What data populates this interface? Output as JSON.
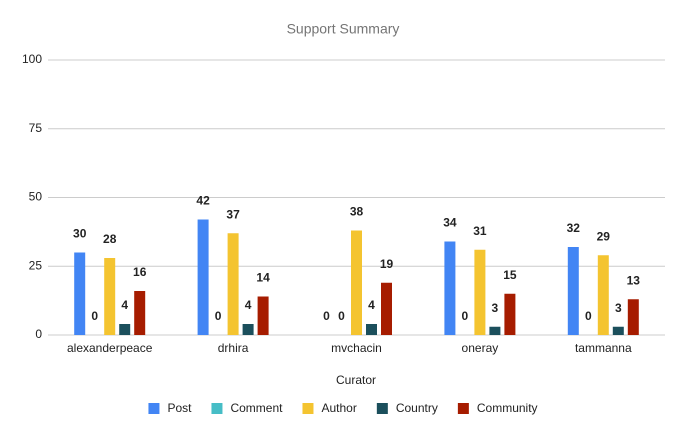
{
  "chart_data": {
    "type": "bar",
    "title": "Support Summary",
    "x_label": "Curator",
    "categories": [
      "alexanderpeace",
      "drhira",
      "mvchacin",
      "oneray",
      "tammanna"
    ],
    "series": [
      {
        "name": "Post",
        "color": "#4285f4",
        "values": [
          30,
          42,
          0,
          34,
          32
        ]
      },
      {
        "name": "Comment",
        "color": "#46bdc6",
        "values": [
          0,
          0,
          0,
          0,
          0
        ]
      },
      {
        "name": "Author",
        "color": "#f4c430",
        "values": [
          28,
          37,
          38,
          31,
          29
        ]
      },
      {
        "name": "Country",
        "color": "#1b4f5c",
        "values": [
          4,
          4,
          4,
          3,
          3
        ]
      },
      {
        "name": "Community",
        "color": "#a61c00",
        "values": [
          16,
          14,
          19,
          15,
          13
        ]
      }
    ],
    "ylim": [
      0,
      100
    ],
    "yticks": [
      0,
      25,
      50,
      75,
      100
    ],
    "grid": true,
    "legend": "bottom"
  }
}
